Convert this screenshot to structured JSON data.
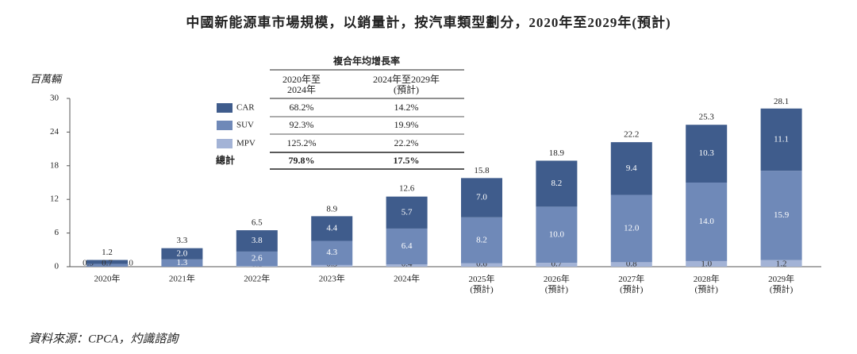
{
  "chart_data": {
    "type": "stacked_bar",
    "title": "中國新能源車市場規模，以銷量計，按汽車類型劃分，2020年至2029年(預計)",
    "y_label": "百萬輛",
    "source": "資料來源：CPCA，灼識諮詢",
    "categories": [
      "2020年",
      "2021年",
      "2022年",
      "2023年",
      "2024年",
      "2025年\n(預計)",
      "2026年\n(預計)",
      "2027年\n(預計)",
      "2028年\n(預計)",
      "2029年\n(預計)"
    ],
    "series": [
      {
        "name": "MPV",
        "color": "#a3b3d6",
        "values": [
          0,
          0,
          0.1,
          0.3,
          0.4,
          0.6,
          0.7,
          0.8,
          1,
          1.2
        ],
        "value_labels": [
          "0.0",
          "0.0",
          "0.1",
          "0.3",
          "0.4",
          "0.6",
          "0.7",
          "0.8",
          "1.0",
          "1.2"
        ]
      },
      {
        "name": "SUV",
        "color": "#6f89b8",
        "values": [
          0.5,
          1.3,
          2.6,
          4.3,
          6.4,
          8.2,
          10,
          12,
          14,
          15.9
        ],
        "value_labels": [
          "0.5",
          "1.3",
          "2.6",
          "4.3",
          "6.4",
          "8.2",
          "10.0",
          "12.0",
          "14.0",
          "15.9"
        ]
      },
      {
        "name": "CAR",
        "color": "#3f5c8c",
        "values": [
          0.7,
          2,
          3.8,
          4.4,
          5.7,
          7,
          8.2,
          9.4,
          10.3,
          11.1
        ],
        "value_labels": [
          "0.7",
          "2.0",
          "3.8",
          "4.4",
          "5.7",
          "7.0",
          "8.2",
          "9.4",
          "10.3",
          "11.1"
        ]
      }
    ],
    "totals": [
      1.2,
      3.3,
      6.5,
      8.9,
      12.6,
      15.8,
      18.9,
      22.2,
      25.3,
      28.1
    ],
    "ylim": [
      0,
      30
    ],
    "yticks": [
      0,
      6,
      12,
      18,
      24,
      30
    ],
    "grid": false,
    "cagr_table": {
      "title": "複合年均增長率",
      "columns": [
        "2020年至\n2024年",
        "2024年至2029年\n(預計)"
      ],
      "series_rows": [
        [
          "125.2%",
          "22.2%"
        ],
        [
          "92.3%",
          "19.9%"
        ],
        [
          "68.2%",
          "14.2%"
        ]
      ],
      "total": {
        "label": "總計",
        "values": [
          "79.8%",
          "17.5%"
        ]
      }
    }
  }
}
